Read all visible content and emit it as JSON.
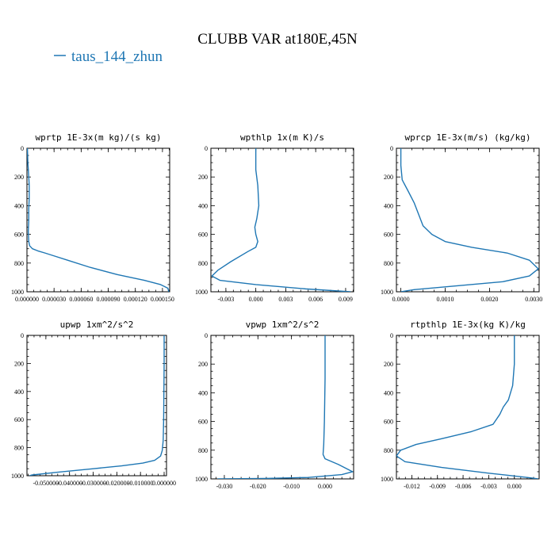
{
  "title": "CLUBB VAR at180E,45N",
  "legend": {
    "label": "taus_144_zhun",
    "color": "#1f77b4"
  },
  "chart_data": [
    {
      "type": "line",
      "title": "wprtp  1E-3x(m kg)/(s kg)",
      "xlim": [
        0.0,
        0.000158
      ],
      "ylim": [
        1000,
        0
      ],
      "xticks": [
        0.0,
        3e-05,
        6e-05,
        9e-05,
        0.00012,
        0.00015
      ],
      "xtick_labels": [
        "0.000000",
        "0.000030",
        "0.000060",
        "0.000090",
        "0.000120",
        "0.000150"
      ],
      "yticks": [
        0,
        200,
        400,
        600,
        800,
        1000
      ],
      "series": [
        {
          "values_x": [
            5e-07,
            1e-06,
            2e-06,
            2.5e-06,
            2.5e-06,
            2e-06,
            2e-06,
            1.5e-06,
            2e-06,
            3e-06,
            6e-06,
            1.2e-05,
            2e-05,
            3e-05,
            4.5e-05,
            7e-05,
            0.0001,
            0.00013,
            0.000148,
            0.000156,
            0.000157
          ],
          "values_y": [
            0,
            100,
            200,
            260,
            350,
            420,
            500,
            580,
            650,
            680,
            700,
            715,
            730,
            750,
            780,
            830,
            880,
            920,
            950,
            975,
            1000
          ]
        }
      ]
    },
    {
      "type": "line",
      "title": "wpthlp  1x(m K)/s",
      "xlim": [
        -0.0045,
        0.0098
      ],
      "ylim": [
        1000,
        0
      ],
      "xticks": [
        -0.003,
        0.0,
        0.003,
        0.006,
        0.009
      ],
      "xtick_labels": [
        "-0.003",
        "0.000",
        "0.003",
        "0.006",
        "0.009"
      ],
      "yticks": [
        0,
        200,
        400,
        600,
        800,
        1000
      ],
      "series": [
        {
          "values_x": [
            0.0,
            0.0,
            0.0002,
            0.0003,
            0.0001,
            -0.0001,
            0.0,
            0.0002,
            0.0,
            -0.0008,
            -0.0025,
            -0.0038,
            -0.0044,
            -0.0036,
            0.0,
            0.005,
            0.0095
          ],
          "values_y": [
            0,
            150,
            260,
            400,
            490,
            550,
            600,
            650,
            690,
            720,
            790,
            850,
            890,
            920,
            950,
            980,
            1000
          ]
        }
      ]
    },
    {
      "type": "line",
      "title": "wprcp  1E-3x(m/s) (kg/kg)",
      "xlim": [
        -0.0001,
        0.00312
      ],
      "ylim": [
        1000,
        0
      ],
      "xticks": [
        0.0,
        0.001,
        0.002,
        0.003
      ],
      "xtick_labels": [
        "0.0000",
        "0.0010",
        "0.0020",
        "0.0030"
      ],
      "yticks": [
        0,
        200,
        400,
        600,
        800,
        1000
      ],
      "series": [
        {
          "values_x": [
            0.0,
            0.0,
            3e-05,
            0.00015,
            0.0003,
            0.0004,
            0.0005,
            0.0007,
            0.001,
            0.0016,
            0.0024,
            0.0029,
            0.0031,
            0.0029,
            0.0023,
            0.0012,
            0.0003,
            0.0
          ],
          "values_y": [
            0,
            120,
            220,
            290,
            380,
            460,
            540,
            600,
            650,
            690,
            730,
            780,
            840,
            890,
            930,
            960,
            985,
            1000
          ]
        }
      ]
    },
    {
      "type": "line",
      "title": "upwp  1xm^2/s^2",
      "xlim": [
        -0.058,
        0.001
      ],
      "ylim": [
        1000,
        0
      ],
      "xticks": [
        -0.05,
        -0.04,
        -0.03,
        -0.02,
        -0.01,
        0.0
      ],
      "xtick_labels": [
        "-0.050000",
        "-0.040000",
        "-0.030000",
        "-0.020000",
        "-0.010000",
        "0.000000"
      ],
      "yticks": [
        0,
        200,
        400,
        600,
        800,
        1000
      ],
      "series": [
        {
          "values_x": [
            0.0,
            0.0,
            -0.0001,
            -0.0002,
            -0.0004,
            -0.0008,
            -0.0015,
            -0.004,
            -0.009,
            -0.018,
            -0.03,
            -0.045,
            -0.056,
            -0.057
          ],
          "values_y": [
            0,
            200,
            400,
            600,
            750,
            820,
            860,
            890,
            910,
            930,
            950,
            975,
            995,
            1000
          ]
        }
      ]
    },
    {
      "type": "line",
      "title": "vpwp  1xm^2/s^2",
      "xlim": [
        -0.034,
        0.0085
      ],
      "ylim": [
        1000,
        0
      ],
      "xticks": [
        -0.03,
        -0.02,
        -0.01,
        0.0
      ],
      "xtick_labels": [
        "-0.030",
        "-0.020",
        "-0.010",
        "0.000"
      ],
      "yticks": [
        0,
        200,
        400,
        600,
        800,
        1000
      ],
      "series": [
        {
          "values_x": [
            0.0,
            0.0,
            -0.0002,
            -0.0004,
            -0.0006,
            0.0,
            0.004,
            0.0082,
            0.005,
            -0.005,
            -0.018,
            -0.032
          ],
          "values_y": [
            0,
            300,
            600,
            760,
            830,
            860,
            900,
            950,
            970,
            990,
            997,
            1000
          ]
        }
      ]
    },
    {
      "type": "line",
      "title": "rtpthlp  1E-3x(kg K)/kg",
      "xlim": [
        -0.0138,
        0.0029
      ],
      "ylim": [
        1000,
        0
      ],
      "xticks": [
        -0.012,
        -0.009,
        -0.006,
        -0.003,
        0.0
      ],
      "xtick_labels": [
        "-0.012",
        "-0.009",
        "-0.006",
        "-0.003",
        "0.000"
      ],
      "yticks": [
        0,
        200,
        400,
        600,
        800,
        1000
      ],
      "series": [
        {
          "values_x": [
            0.0,
            0.0,
            -0.0002,
            -0.0007,
            -0.0013,
            -0.0017,
            -0.0025,
            -0.005,
            -0.0085,
            -0.0115,
            -0.0133,
            -0.0138,
            -0.0128,
            -0.0085,
            -0.003,
            0.0015,
            0.0028
          ],
          "values_y": [
            0,
            200,
            350,
            450,
            500,
            550,
            620,
            670,
            720,
            760,
            800,
            840,
            880,
            920,
            960,
            990,
            1000
          ]
        }
      ]
    }
  ]
}
